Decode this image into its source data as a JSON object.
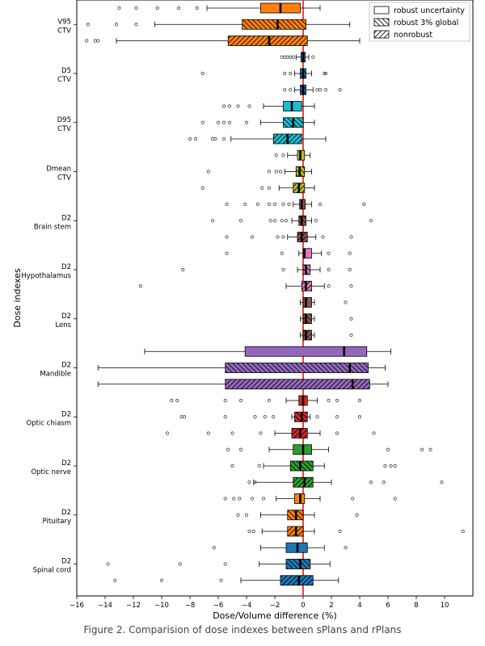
{
  "caption": "Figure 2. Comparision of dose indexes between sPlans and rPlans",
  "chart_data": {
    "type": "boxplot",
    "orientation": "horizontal",
    "xlabel": "Dose/Volume difference (%)",
    "ylabel": "Dose indexes",
    "xlim": [
      -16,
      12
    ],
    "xticks": [
      -16,
      -14,
      -12,
      -10,
      -8,
      -6,
      -4,
      -2,
      0,
      2,
      4,
      6,
      8,
      10
    ],
    "reference_line_x": 0,
    "reference_line_color": "#e8322e",
    "legend": {
      "position": "top-right",
      "entries": [
        {
          "label": "robust uncertainty",
          "hatch": "none"
        },
        {
          "label": "robust 3% global",
          "hatch": "backslash"
        },
        {
          "label": "nonrobust",
          "hatch": "slash"
        }
      ]
    },
    "groups": [
      {
        "label": "V95\nCTV",
        "color": "#ff7f0e",
        "boxes": [
          {
            "plan": "robust uncertainty",
            "whislo": -6.8,
            "q1": -3.0,
            "med": -1.6,
            "q3": -0.2,
            "whishi": 1.2,
            "fliers": [
              -13.0,
              -11.8,
              -10.3,
              -8.8,
              -7.5
            ]
          },
          {
            "plan": "robust 3% global",
            "whislo": -10.5,
            "q1": -4.3,
            "med": -1.8,
            "q3": 0.2,
            "whishi": 3.3,
            "fliers": [
              -15.2,
              -13.2,
              -11.8
            ]
          },
          {
            "plan": "nonrobust",
            "whislo": -13.2,
            "q1": -5.3,
            "med": -2.4,
            "q3": 0.3,
            "whishi": 4.0,
            "fliers": [
              -15.3,
              -14.7,
              -14.5
            ]
          }
        ]
      },
      {
        "label": "D5\nCTV",
        "color": "#1f77b4",
        "boxes": [
          {
            "plan": "robust uncertainty",
            "whislo": -0.5,
            "q1": -0.15,
            "med": 0.0,
            "q3": 0.15,
            "whishi": 0.4,
            "fliers": [
              -1.5,
              -1.3,
              -1.1,
              -0.9,
              -0.7,
              0.7
            ]
          },
          {
            "plan": "robust 3% global",
            "whislo": -0.6,
            "q1": -0.2,
            "med": 0.0,
            "q3": 0.2,
            "whishi": 0.6,
            "fliers": [
              -7.1,
              -1.3,
              -0.9,
              1.5,
              1.6
            ]
          },
          {
            "plan": "nonrobust",
            "whislo": -0.6,
            "q1": -0.2,
            "med": 0.0,
            "q3": 0.2,
            "whishi": 0.7,
            "fliers": [
              -1.3,
              -0.9,
              1.0,
              1.2,
              1.6,
              2.6
            ]
          }
        ]
      },
      {
        "label": "D95\nCTV",
        "color": "#17becf",
        "boxes": [
          {
            "plan": "robust uncertainty",
            "whislo": -2.8,
            "q1": -1.4,
            "med": -0.8,
            "q3": -0.1,
            "whishi": 0.8,
            "fliers": [
              -5.6,
              -5.2,
              -4.6,
              -3.8
            ]
          },
          {
            "plan": "robust 3% global",
            "whislo": -3.0,
            "q1": -1.4,
            "med": -0.7,
            "q3": 0.0,
            "whishi": 0.8,
            "fliers": [
              -7.1,
              -6.0,
              -5.6,
              -5.2,
              -4.0
            ]
          },
          {
            "plan": "nonrobust",
            "whislo": -5.1,
            "q1": -2.1,
            "med": -1.1,
            "q3": -0.1,
            "whishi": 1.6,
            "fliers": [
              -8.0,
              -7.6,
              -6.4,
              -6.2,
              -5.6
            ]
          }
        ]
      },
      {
        "label": "Dmean\nCTV",
        "color": "#bcbd22",
        "boxes": [
          {
            "plan": "robust uncertainty",
            "whislo": -1.1,
            "q1": -0.4,
            "med": -0.2,
            "q3": 0.1,
            "whishi": 0.5,
            "fliers": [
              -1.9,
              -1.4
            ]
          },
          {
            "plan": "robust 3% global",
            "whislo": -1.3,
            "q1": -0.5,
            "med": -0.25,
            "q3": 0.1,
            "whishi": 0.6,
            "fliers": [
              -6.7,
              -2.4,
              -1.9,
              -1.6
            ]
          },
          {
            "plan": "nonrobust",
            "whislo": -1.7,
            "q1": -0.7,
            "med": -0.3,
            "q3": 0.1,
            "whishi": 0.8,
            "fliers": [
              -7.1,
              -2.9,
              -2.4
            ]
          }
        ]
      },
      {
        "label": "D2\nBrain stem",
        "color": "#8c564b",
        "boxes": [
          {
            "plan": "robust uncertainty",
            "whislo": -0.7,
            "q1": -0.25,
            "med": -0.1,
            "q3": 0.15,
            "whishi": 0.6,
            "fliers": [
              -5.4,
              -4.1,
              -3.2,
              -2.4,
              -2.0,
              -1.4,
              -1.0,
              1.2,
              4.3
            ]
          },
          {
            "plan": "robust 3% global",
            "whislo": -0.8,
            "q1": -0.3,
            "med": -0.1,
            "q3": 0.2,
            "whishi": 0.6,
            "fliers": [
              -6.4,
              -4.4,
              -2.3,
              -2.0,
              -1.5,
              -1.2,
              0.9,
              4.8
            ]
          },
          {
            "plan": "nonrobust",
            "whislo": -1.1,
            "q1": -0.4,
            "med": -0.1,
            "q3": 0.3,
            "whishi": 0.9,
            "fliers": [
              -5.4,
              -3.6,
              -1.8,
              -1.4,
              1.4,
              3.4
            ]
          }
        ]
      },
      {
        "label": "D2\nHypothalamus",
        "color": "#e377c2",
        "boxes": [
          {
            "plan": "robust uncertainty",
            "whislo": -0.3,
            "q1": 0.0,
            "med": 0.1,
            "q3": 0.6,
            "whishi": 1.3,
            "fliers": [
              -5.4,
              -1.5,
              1.8,
              3.3
            ]
          },
          {
            "plan": "robust 3% global",
            "whislo": -0.4,
            "q1": 0.0,
            "med": 0.2,
            "q3": 0.5,
            "whishi": 1.2,
            "fliers": [
              -8.5,
              -1.4,
              1.8,
              3.3
            ]
          },
          {
            "plan": "nonrobust",
            "whislo": -1.2,
            "q1": -0.1,
            "med": 0.2,
            "q3": 0.6,
            "whishi": 1.5,
            "fliers": [
              -11.5,
              1.8,
              3.4
            ]
          }
        ]
      },
      {
        "label": "D2\nLens",
        "color": "#8c564b",
        "boxes": [
          {
            "plan": "robust uncertainty",
            "whislo": -0.2,
            "q1": 0.0,
            "med": 0.2,
            "q3": 0.6,
            "whishi": 0.8,
            "fliers": [
              3.0
            ]
          },
          {
            "plan": "robust 3% global",
            "whislo": -0.2,
            "q1": 0.0,
            "med": 0.2,
            "q3": 0.6,
            "whishi": 0.8,
            "fliers": [
              3.4
            ]
          },
          {
            "plan": "nonrobust",
            "whislo": -0.2,
            "q1": 0.0,
            "med": 0.2,
            "q3": 0.6,
            "whishi": 0.8,
            "fliers": [
              3.4
            ]
          }
        ]
      },
      {
        "label": "D2\nMandible",
        "color": "#9467bd",
        "boxes": [
          {
            "plan": "robust uncertainty",
            "whislo": -11.2,
            "q1": -4.1,
            "med": 2.9,
            "q3": 4.5,
            "whishi": 6.2,
            "fliers": []
          },
          {
            "plan": "robust 3% global",
            "whislo": -14.5,
            "q1": -5.5,
            "med": 3.3,
            "q3": 4.6,
            "whishi": 5.8,
            "fliers": []
          },
          {
            "plan": "nonrobust",
            "whislo": -14.5,
            "q1": -5.5,
            "med": 3.5,
            "q3": 4.7,
            "whishi": 6.0,
            "fliers": []
          }
        ]
      },
      {
        "label": "D2\nOptic chiasm",
        "color": "#d62728",
        "boxes": [
          {
            "plan": "robust uncertainty",
            "whislo": -1.2,
            "q1": -0.3,
            "med": 0.0,
            "q3": 0.3,
            "whishi": 1.0,
            "fliers": [
              -9.3,
              -8.9,
              -5.5,
              -4.4,
              -2.4,
              1.8,
              2.4,
              4.0
            ]
          },
          {
            "plan": "robust 3% global",
            "whislo": -0.8,
            "q1": -0.6,
            "med": -0.1,
            "q3": 0.3,
            "whishi": 0.5,
            "fliers": [
              -8.6,
              -8.4,
              -5.5,
              -3.4,
              -2.7,
              -2.1,
              1.0,
              2.4,
              4.0
            ]
          },
          {
            "plan": "nonrobust",
            "whislo": -2.0,
            "q1": -0.8,
            "med": -0.2,
            "q3": 0.3,
            "whishi": 1.2,
            "fliers": [
              -9.6,
              -6.7,
              -5.0,
              -3.0,
              2.4,
              5.0
            ]
          }
        ]
      },
      {
        "label": "D2\nOptic nerve",
        "color": "#2ca02c",
        "boxes": [
          {
            "plan": "robust uncertainty",
            "whislo": -2.4,
            "q1": -0.7,
            "med": 0.0,
            "q3": 0.6,
            "whishi": 1.8,
            "fliers": [
              -5.3,
              -4.4,
              6.0,
              8.4,
              9.0
            ]
          },
          {
            "plan": "robust 3% global",
            "whislo": -2.8,
            "q1": -0.9,
            "med": -0.2,
            "q3": 0.7,
            "whishi": 1.5,
            "fliers": [
              -5.0,
              -3.1,
              5.8,
              6.2,
              6.5
            ]
          },
          {
            "plan": "nonrobust",
            "whislo": -3.5,
            "q1": -0.7,
            "med": 0.1,
            "q3": 0.7,
            "whishi": 2.0,
            "fliers": [
              -3.8,
              -3.4,
              4.8,
              5.7,
              9.8
            ]
          }
        ]
      },
      {
        "label": "D2\nPituitary",
        "color": "#ff7f0e",
        "boxes": [
          {
            "plan": "robust uncertainty",
            "whislo": -1.9,
            "q1": -0.6,
            "med": -0.2,
            "q3": 0.1,
            "whishi": 1.2,
            "fliers": [
              -5.5,
              -4.9,
              -4.5,
              -3.6,
              -2.8,
              3.5,
              6.5
            ]
          },
          {
            "plan": "robust 3% global",
            "whislo": -3.0,
            "q1": -1.1,
            "med": -0.5,
            "q3": 0.0,
            "whishi": 0.8,
            "fliers": [
              -4.6,
              -4.0,
              3.8
            ]
          },
          {
            "plan": "nonrobust",
            "whislo": -2.9,
            "q1": -1.1,
            "med": -0.5,
            "q3": 0.0,
            "whishi": 0.8,
            "fliers": [
              -3.8,
              -3.5,
              2.6,
              11.3
            ]
          }
        ]
      },
      {
        "label": "D2\nSpinal cord",
        "color": "#1f77b4",
        "boxes": [
          {
            "plan": "robust uncertainty",
            "whislo": -3.0,
            "q1": -1.2,
            "med": -0.4,
            "q3": 0.3,
            "whishi": 1.5,
            "fliers": [
              -6.3,
              3.0
            ]
          },
          {
            "plan": "robust 3% global",
            "whislo": -3.1,
            "q1": -1.2,
            "med": -0.2,
            "q3": 0.5,
            "whishi": 1.9,
            "fliers": [
              -13.8,
              -8.7,
              -5.5
            ]
          },
          {
            "plan": "nonrobust",
            "whislo": -4.4,
            "q1": -1.6,
            "med": -0.3,
            "q3": 0.7,
            "whishi": 2.5,
            "fliers": [
              -13.3,
              -10.0,
              -5.8
            ]
          }
        ]
      }
    ]
  }
}
